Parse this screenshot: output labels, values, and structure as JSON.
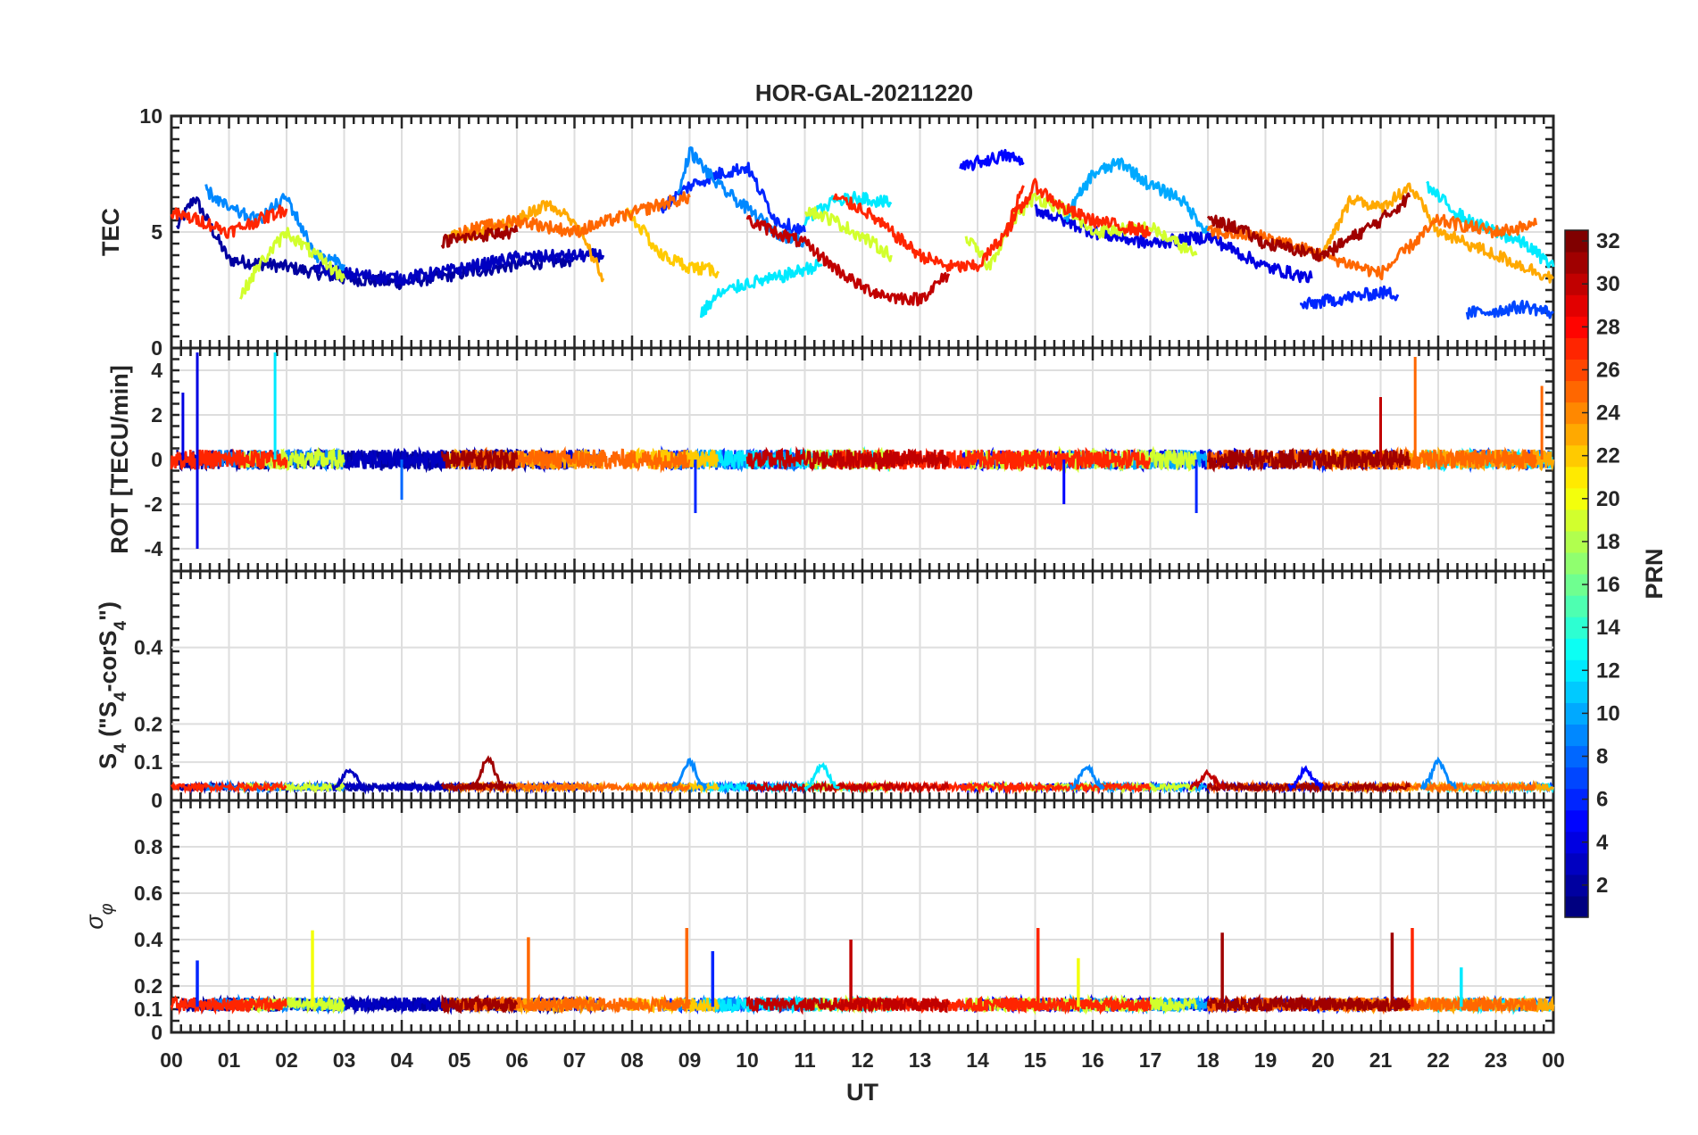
{
  "chart_data": {
    "type": "line",
    "title": "HOR-GAL-20211220",
    "xlabel": "UT",
    "x_tick_labels": [
      "00",
      "01",
      "02",
      "03",
      "04",
      "05",
      "06",
      "07",
      "08",
      "09",
      "10",
      "11",
      "12",
      "13",
      "14",
      "15",
      "16",
      "17",
      "18",
      "19",
      "20",
      "21",
      "22",
      "23",
      "00"
    ],
    "xlim": [
      0,
      24
    ],
    "grid": true,
    "panels": [
      {
        "key": "tec",
        "ylabel": "TEC",
        "ylim": [
          0,
          10
        ],
        "yticks": [
          0,
          5,
          10
        ]
      },
      {
        "key": "rot",
        "ylabel": "ROT [TECU/min]",
        "ylim": [
          -5,
          5
        ],
        "yticks": [
          -4,
          -2,
          0,
          2,
          4
        ]
      },
      {
        "key": "s4",
        "ylabel": "S4 (\"S4-corS4\")",
        "ylim": [
          0,
          0.6
        ],
        "yticks": [
          0,
          0.1,
          0.2,
          0.4
        ]
      },
      {
        "key": "sigma",
        "ylabel": "σφ",
        "ylim": [
          0,
          1
        ],
        "yticks": [
          0,
          0.1,
          0.2,
          0.4,
          0.6,
          0.8
        ]
      }
    ],
    "colorbar": {
      "label": "PRN",
      "range": [
        1,
        32
      ],
      "ticks": [
        2,
        4,
        6,
        8,
        10,
        12,
        14,
        16,
        18,
        20,
        22,
        24,
        26,
        28,
        30,
        32
      ],
      "colormap": "jet"
    },
    "series": [
      {
        "prn": 2,
        "x": [
          0.1,
          0.4,
          1.0,
          2.0,
          3.0,
          4.0,
          5.0,
          6.0,
          7.0
        ],
        "tec": [
          5.2,
          6.5,
          3.8,
          3.5,
          3.0,
          2.8,
          3.2,
          3.6,
          3.8
        ]
      },
      {
        "prn": 3,
        "x": [
          2.5,
          3.0,
          4.0,
          5.0,
          6.0,
          7.5
        ],
        "tec": [
          3.5,
          3.2,
          3.0,
          3.4,
          3.9,
          4.0
        ]
      },
      {
        "prn": 6,
        "x": [
          8.5,
          9.0,
          9.5,
          10.0,
          10.5,
          11.0
        ],
        "tec": [
          6.0,
          7.0,
          7.5,
          7.8,
          5.5,
          5.0
        ]
      },
      {
        "prn": 5,
        "x": [
          13.7,
          14.0,
          14.5,
          14.8
        ],
        "tec": [
          7.7,
          8.0,
          8.3,
          8.0
        ]
      },
      {
        "prn": 4,
        "x": [
          15.0,
          16.0,
          17.0,
          18.0,
          19.0,
          19.8
        ],
        "tec": [
          6.0,
          5.0,
          4.5,
          4.8,
          3.5,
          3.0
        ]
      },
      {
        "prn": 6,
        "x": [
          19.6,
          20.0,
          20.5,
          21.0,
          21.3
        ],
        "tec": [
          1.8,
          2.0,
          2.2,
          2.4,
          2.3
        ]
      },
      {
        "prn": 7,
        "x": [
          22.5,
          23.0,
          23.5,
          24.0
        ],
        "tec": [
          1.5,
          1.6,
          1.8,
          1.5
        ]
      },
      {
        "prn": 9,
        "x": [
          0.6,
          1.0,
          1.5,
          2.0,
          2.5,
          3.0
        ],
        "tec": [
          6.8,
          6.0,
          5.5,
          6.5,
          4.0,
          3.6
        ]
      },
      {
        "prn": 9,
        "x": [
          8.8,
          9.0,
          9.5,
          10.0,
          10.5,
          11.0
        ],
        "tec": [
          6.5,
          8.5,
          7.0,
          6.0,
          5.0,
          4.5
        ]
      },
      {
        "prn": 10,
        "x": [
          15.5,
          16.0,
          16.5,
          17.0,
          17.5,
          18.0
        ],
        "tec": [
          5.5,
          7.5,
          8.0,
          7.0,
          6.5,
          5.0
        ]
      },
      {
        "prn": 12,
        "x": [
          9.2,
          9.5,
          10.0,
          10.5,
          11.0,
          11.3
        ],
        "tec": [
          1.5,
          2.3,
          2.8,
          3.0,
          3.4,
          3.6
        ]
      },
      {
        "prn": 12,
        "x": [
          11.0,
          11.5,
          12.0,
          12.5
        ],
        "tec": [
          5.5,
          6.3,
          6.5,
          6.2
        ]
      },
      {
        "prn": 12,
        "x": [
          21.8,
          22.0,
          22.5,
          23.0,
          23.5,
          24.0
        ],
        "tec": [
          7.0,
          6.5,
          5.5,
          5.0,
          4.5,
          3.5
        ]
      },
      {
        "prn": 19,
        "x": [
          1.2,
          1.5,
          2.0,
          2.5,
          3.0
        ],
        "tec": [
          2.2,
          3.5,
          5.0,
          4.0,
          3.0
        ]
      },
      {
        "prn": 19,
        "x": [
          11.0,
          11.5,
          12.0,
          12.5
        ],
        "tec": [
          6.0,
          5.5,
          4.8,
          4.0
        ]
      },
      {
        "prn": 19,
        "x": [
          13.8,
          14.2,
          14.6,
          15.0,
          15.5,
          16.0,
          17.0,
          17.8
        ],
        "tec": [
          4.8,
          3.5,
          5.5,
          6.5,
          6.0,
          5.0,
          5.2,
          4.0
        ]
      },
      {
        "prn": 22,
        "x": [
          7.9,
          8.2,
          8.5,
          9.0,
          9.5
        ],
        "tec": [
          6.0,
          5.0,
          4.0,
          3.5,
          3.3
        ]
      },
      {
        "prn": 23,
        "x": [
          4.8,
          5.5,
          6.0,
          6.5,
          7.0,
          7.5
        ],
        "tec": [
          4.8,
          5.0,
          5.5,
          6.2,
          5.5,
          3.0
        ]
      },
      {
        "prn": 23,
        "x": [
          20.0,
          20.5,
          21.0,
          21.5,
          22.0,
          23.0,
          24.0
        ],
        "tec": [
          4.0,
          6.5,
          6.0,
          7.0,
          5.0,
          4.0,
          3.0
        ]
      },
      {
        "prn": 25,
        "x": [
          5.0,
          6.0,
          7.0,
          8.0,
          8.5,
          9.0
        ],
        "tec": [
          5.0,
          5.5,
          5.0,
          5.8,
          6.2,
          6.5
        ]
      },
      {
        "prn": 25,
        "x": [
          18.0,
          19.0,
          20.0,
          21.0,
          22.0,
          23.0,
          23.7
        ],
        "tec": [
          5.0,
          4.8,
          4.0,
          3.2,
          5.5,
          5.0,
          5.3
        ]
      },
      {
        "prn": 27,
        "x": [
          0.0,
          0.5,
          1.0,
          1.5,
          2.0
        ],
        "tec": [
          5.8,
          5.5,
          5.0,
          5.5,
          6.0
        ]
      },
      {
        "prn": 27,
        "x": [
          11.5,
          12.0,
          12.5,
          13.0,
          13.5,
          14.0,
          14.5,
          14.8
        ],
        "tec": [
          6.5,
          6.0,
          5.0,
          4.0,
          3.5,
          3.5,
          5.0,
          7.0
        ]
      },
      {
        "prn": 27,
        "x": [
          14.5,
          15.0,
          15.5,
          16.0,
          17.0
        ],
        "tec": [
          5.0,
          7.0,
          6.0,
          5.5,
          5.0
        ]
      },
      {
        "prn": 30,
        "x": [
          10.0,
          10.5,
          11.0,
          11.5,
          12.0,
          12.5,
          13.0,
          13.5
        ],
        "tec": [
          5.5,
          5.0,
          4.5,
          3.5,
          2.6,
          2.2,
          2.1,
          3.2
        ]
      },
      {
        "prn": 31,
        "x": [
          4.7,
          5.5,
          6.0
        ],
        "tec": [
          4.6,
          4.9,
          5.0
        ]
      },
      {
        "prn": 31,
        "x": [
          18.0,
          18.5,
          19.0,
          20.0,
          21.0,
          21.5
        ],
        "tec": [
          5.5,
          5.2,
          4.5,
          4.0,
          5.5,
          6.5
        ]
      }
    ],
    "s4_bumps": [
      {
        "prn": 31,
        "x": 5.5,
        "peak": 0.11
      },
      {
        "prn": 3,
        "x": 3.1,
        "peak": 0.08
      },
      {
        "prn": 9,
        "x": 9.0,
        "peak": 0.1
      },
      {
        "prn": 12,
        "x": 11.3,
        "peak": 0.09
      },
      {
        "prn": 9,
        "x": 15.9,
        "peak": 0.09
      },
      {
        "prn": 5,
        "x": 19.7,
        "peak": 0.08
      },
      {
        "prn": 9,
        "x": 22.0,
        "peak": 0.1
      },
      {
        "prn": 30,
        "x": 18.0,
        "peak": 0.07
      }
    ],
    "rot_spikes": [
      {
        "prn": 4,
        "x": 0.45,
        "value": 4.8
      },
      {
        "prn": 4,
        "x": 0.45,
        "value": -4.0
      },
      {
        "prn": 4,
        "x": 0.2,
        "value": 3.0
      },
      {
        "prn": 12,
        "x": 1.8,
        "value": 4.8
      },
      {
        "prn": 30,
        "x": 21.0,
        "value": 2.8
      },
      {
        "prn": 25,
        "x": 21.6,
        "value": 4.6
      },
      {
        "prn": 25,
        "x": 23.8,
        "value": 3.3
      },
      {
        "prn": 6,
        "x": 9.1,
        "value": -2.4
      },
      {
        "prn": 6,
        "x": 17.8,
        "value": -2.4
      },
      {
        "prn": 5,
        "x": 15.5,
        "value": -2.0
      },
      {
        "prn": 8,
        "x": 4.0,
        "value": -1.8
      }
    ],
    "sigma_spikes": [
      {
        "prn": 20,
        "x": 2.45,
        "value": 0.44
      },
      {
        "prn": 25,
        "x": 6.2,
        "value": 0.41
      },
      {
        "prn": 25,
        "x": 8.95,
        "value": 0.45
      },
      {
        "prn": 30,
        "x": 11.8,
        "value": 0.4
      },
      {
        "prn": 27,
        "x": 15.05,
        "value": 0.45
      },
      {
        "prn": 20,
        "x": 15.75,
        "value": 0.32
      },
      {
        "prn": 31,
        "x": 18.25,
        "value": 0.43
      },
      {
        "prn": 31,
        "x": 21.2,
        "value": 0.43
      },
      {
        "prn": 27,
        "x": 21.55,
        "value": 0.45
      },
      {
        "prn": 6,
        "x": 0.45,
        "value": 0.31
      },
      {
        "prn": 6,
        "x": 9.4,
        "value": 0.35
      },
      {
        "prn": 12,
        "x": 22.4,
        "value": 0.28
      }
    ]
  }
}
